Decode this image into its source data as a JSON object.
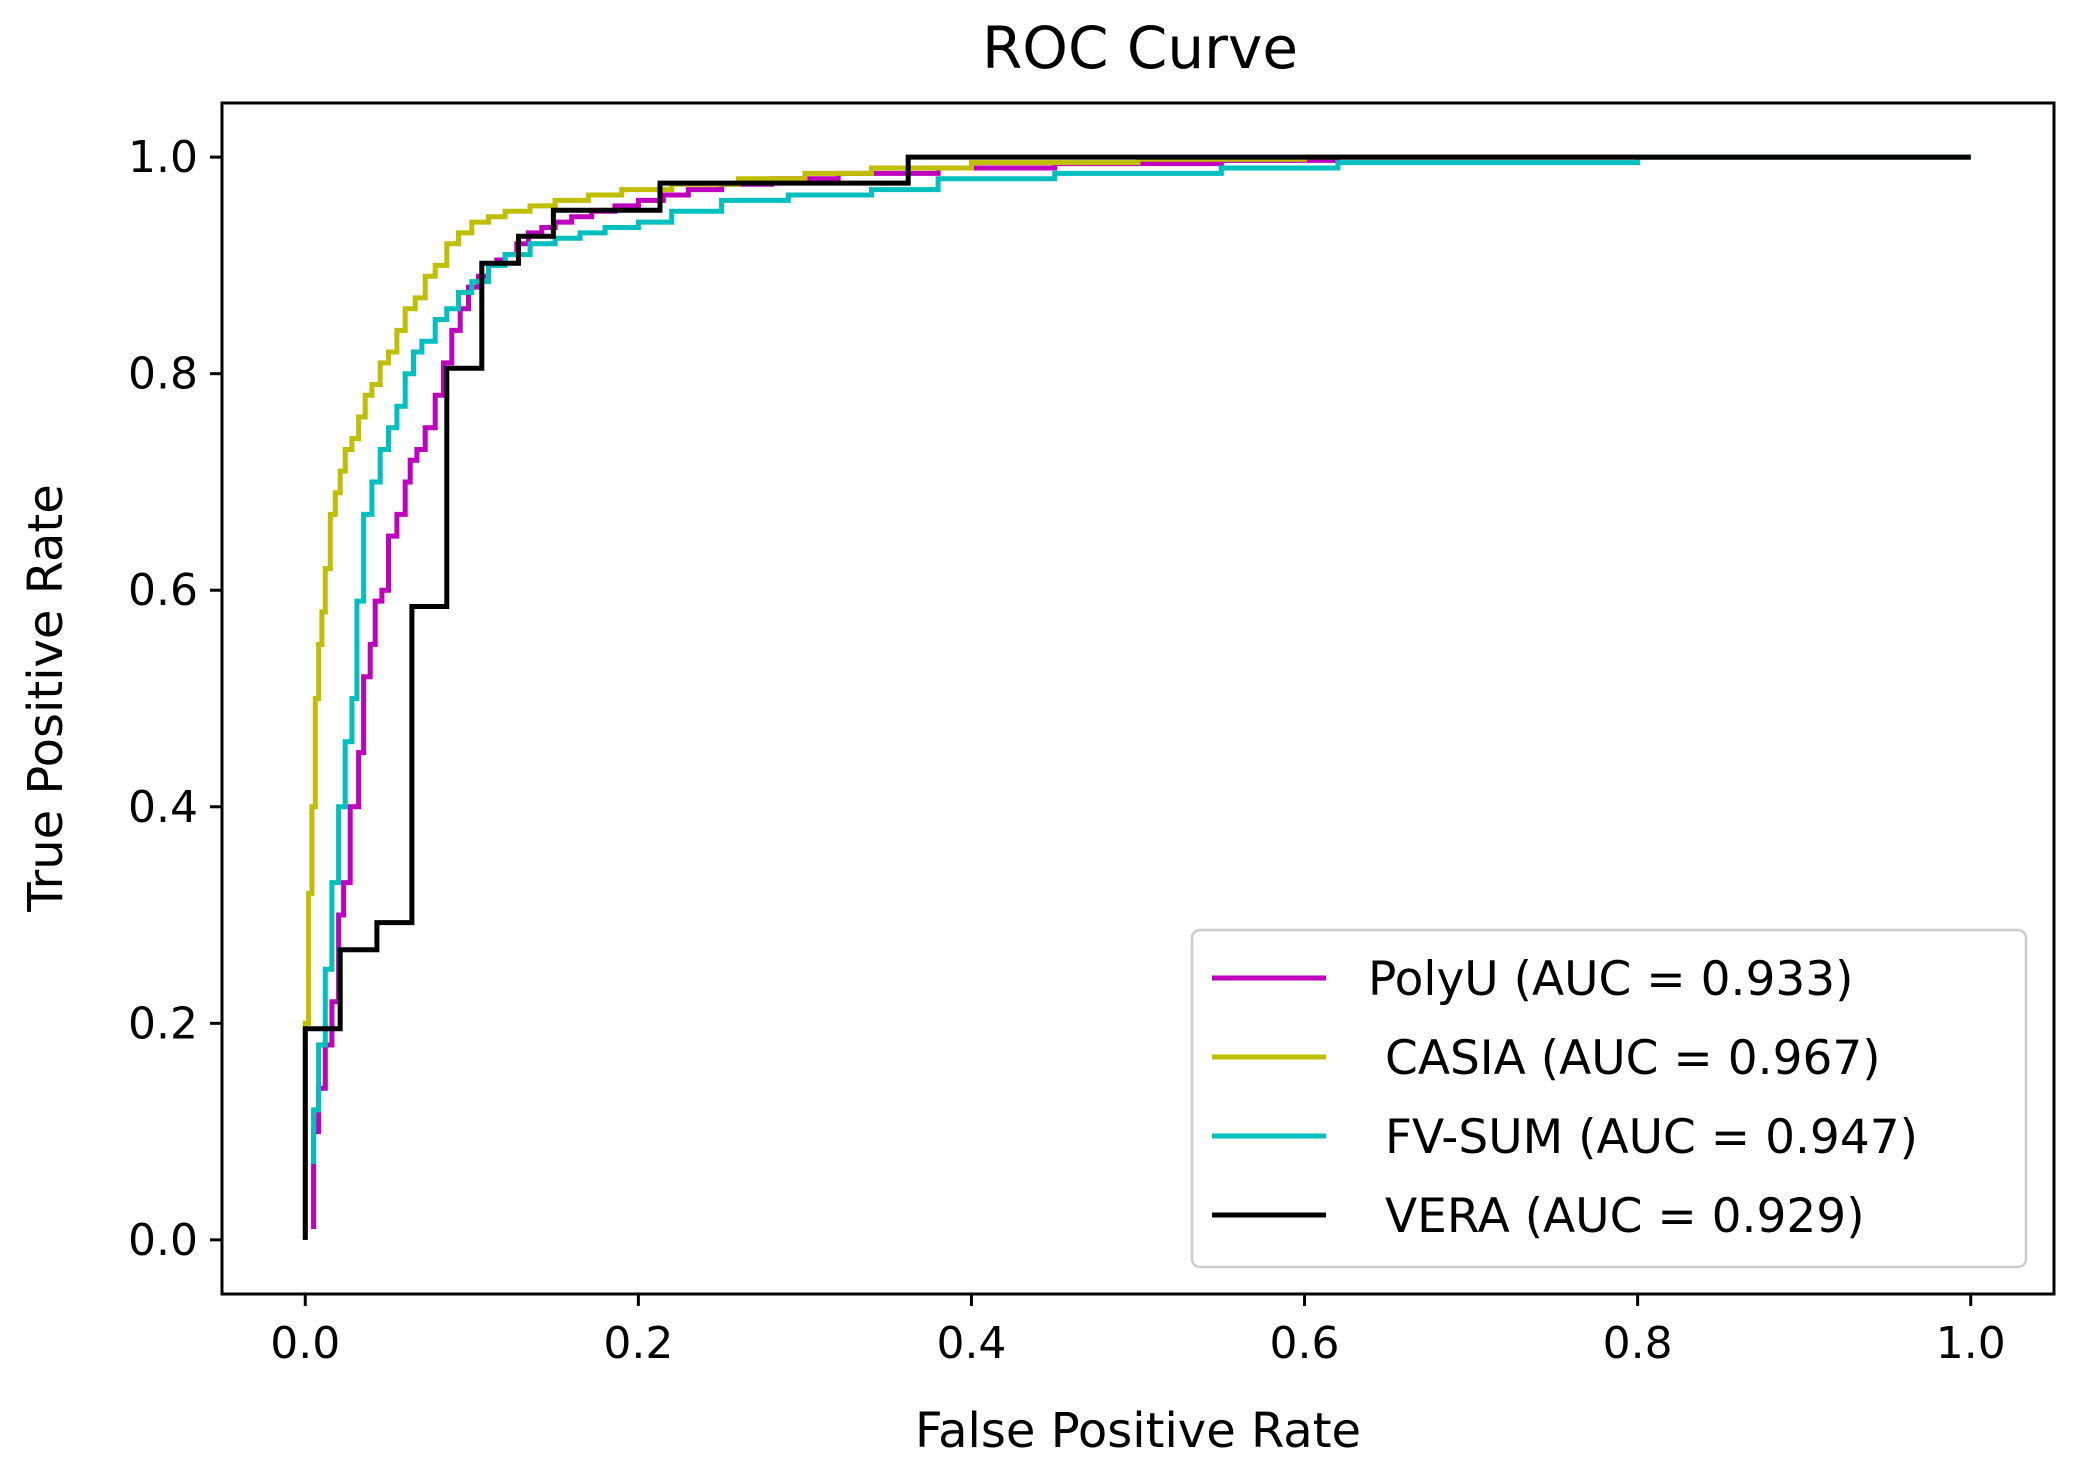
{
  "chart_data": {
    "type": "line",
    "title": "ROC Curve",
    "xlabel": "False Positive Rate",
    "ylabel": "True Positive Rate",
    "xlim": [
      -0.05,
      1.05
    ],
    "ylim": [
      -0.05,
      1.05
    ],
    "xticks": [
      0.0,
      0.2,
      0.4,
      0.6,
      0.8,
      1.0
    ],
    "yticks": [
      0.0,
      0.2,
      0.4,
      0.6,
      0.8,
      1.0
    ],
    "xtick_labels": [
      "0.0",
      "0.2",
      "0.4",
      "0.6",
      "0.8",
      "1.0"
    ],
    "ytick_labels": [
      "0.0",
      "0.2",
      "0.4",
      "0.6",
      "0.8",
      "1.0"
    ],
    "grid": false,
    "legend_position": "lower-right",
    "series": [
      {
        "name": "PolyU (AUC = 0.933)",
        "color": "#bf00bf",
        "step": true,
        "x": [
          0.005,
          0.005,
          0.008,
          0.008,
          0.012,
          0.012,
          0.016,
          0.016,
          0.02,
          0.02,
          0.023,
          0.023,
          0.027,
          0.027,
          0.032,
          0.032,
          0.035,
          0.035,
          0.039,
          0.039,
          0.042,
          0.042,
          0.046,
          0.046,
          0.05,
          0.05,
          0.055,
          0.055,
          0.06,
          0.06,
          0.063,
          0.063,
          0.067,
          0.067,
          0.072,
          0.072,
          0.078,
          0.078,
          0.083,
          0.083,
          0.088,
          0.088,
          0.093,
          0.093,
          0.098,
          0.098,
          0.104,
          0.104,
          0.11,
          0.11,
          0.115,
          0.115,
          0.12,
          0.12,
          0.127,
          0.127,
          0.134,
          0.134,
          0.142,
          0.142,
          0.15,
          0.15,
          0.16,
          0.16,
          0.172,
          0.172,
          0.186,
          0.186,
          0.2,
          0.2,
          0.215,
          0.215,
          0.23,
          0.23,
          0.25,
          0.25,
          0.28,
          0.28,
          0.32,
          0.32,
          0.38,
          0.38,
          0.45,
          0.45,
          0.55,
          0.55,
          0.62,
          0.62,
          0.8,
          0.8,
          1.0
        ],
        "y": [
          0.01,
          0.1,
          0.1,
          0.14,
          0.14,
          0.18,
          0.18,
          0.22,
          0.22,
          0.3,
          0.3,
          0.33,
          0.33,
          0.4,
          0.4,
          0.45,
          0.45,
          0.52,
          0.52,
          0.55,
          0.55,
          0.59,
          0.59,
          0.6,
          0.6,
          0.65,
          0.65,
          0.67,
          0.67,
          0.7,
          0.7,
          0.72,
          0.72,
          0.73,
          0.73,
          0.75,
          0.75,
          0.78,
          0.78,
          0.81,
          0.81,
          0.84,
          0.84,
          0.86,
          0.86,
          0.88,
          0.88,
          0.89,
          0.89,
          0.9,
          0.9,
          0.905,
          0.905,
          0.91,
          0.91,
          0.92,
          0.92,
          0.93,
          0.93,
          0.935,
          0.935,
          0.94,
          0.94,
          0.945,
          0.945,
          0.95,
          0.95,
          0.955,
          0.955,
          0.96,
          0.96,
          0.965,
          0.965,
          0.97,
          0.97,
          0.975,
          0.975,
          0.98,
          0.98,
          0.985,
          0.985,
          0.99,
          0.99,
          0.994,
          0.994,
          0.997,
          0.997,
          1.0,
          1.0,
          1.0,
          1.0
        ]
      },
      {
        "name": "CASIA (AUC = 0.967)",
        "color": "#bfbf00",
        "step": true,
        "x": [
          0.0,
          0.0,
          0.002,
          0.002,
          0.004,
          0.004,
          0.006,
          0.006,
          0.008,
          0.008,
          0.01,
          0.01,
          0.012,
          0.012,
          0.015,
          0.015,
          0.018,
          0.018,
          0.021,
          0.021,
          0.024,
          0.024,
          0.028,
          0.028,
          0.032,
          0.032,
          0.036,
          0.036,
          0.04,
          0.04,
          0.045,
          0.045,
          0.05,
          0.05,
          0.055,
          0.055,
          0.06,
          0.06,
          0.066,
          0.066,
          0.072,
          0.072,
          0.078,
          0.078,
          0.085,
          0.085,
          0.092,
          0.092,
          0.1,
          0.1,
          0.11,
          0.11,
          0.12,
          0.12,
          0.135,
          0.135,
          0.15,
          0.15,
          0.17,
          0.17,
          0.19,
          0.19,
          0.22,
          0.22,
          0.26,
          0.26,
          0.3,
          0.3,
          0.34,
          0.34,
          0.4,
          0.4,
          0.5,
          0.5,
          0.6,
          0.6,
          1.0
        ],
        "y": [
          0.0,
          0.2,
          0.2,
          0.32,
          0.32,
          0.4,
          0.4,
          0.5,
          0.5,
          0.55,
          0.55,
          0.58,
          0.58,
          0.62,
          0.62,
          0.67,
          0.67,
          0.69,
          0.69,
          0.71,
          0.71,
          0.73,
          0.73,
          0.74,
          0.74,
          0.76,
          0.76,
          0.78,
          0.78,
          0.79,
          0.79,
          0.81,
          0.81,
          0.82,
          0.82,
          0.84,
          0.84,
          0.86,
          0.86,
          0.87,
          0.87,
          0.89,
          0.89,
          0.9,
          0.9,
          0.92,
          0.92,
          0.93,
          0.93,
          0.94,
          0.94,
          0.945,
          0.945,
          0.95,
          0.95,
          0.955,
          0.955,
          0.96,
          0.96,
          0.965,
          0.965,
          0.97,
          0.97,
          0.975,
          0.975,
          0.98,
          0.98,
          0.985,
          0.985,
          0.99,
          0.99,
          0.995,
          0.995,
          0.998,
          0.998,
          1.0,
          1.0
        ]
      },
      {
        "name": "FV-SUM (AUC = 0.947)",
        "color": "#00bfbf",
        "step": true,
        "x": [
          0.005,
          0.005,
          0.008,
          0.008,
          0.012,
          0.012,
          0.016,
          0.016,
          0.02,
          0.02,
          0.024,
          0.024,
          0.028,
          0.028,
          0.031,
          0.031,
          0.035,
          0.035,
          0.04,
          0.04,
          0.045,
          0.045,
          0.05,
          0.05,
          0.055,
          0.055,
          0.06,
          0.06,
          0.065,
          0.065,
          0.07,
          0.07,
          0.078,
          0.078,
          0.085,
          0.085,
          0.092,
          0.092,
          0.1,
          0.1,
          0.11,
          0.11,
          0.12,
          0.12,
          0.135,
          0.135,
          0.15,
          0.15,
          0.165,
          0.165,
          0.18,
          0.18,
          0.2,
          0.2,
          0.22,
          0.22,
          0.25,
          0.25,
          0.29,
          0.29,
          0.34,
          0.34,
          0.38,
          0.38,
          0.45,
          0.45,
          0.55,
          0.55,
          0.62,
          0.62,
          0.8,
          0.8,
          1.0
        ],
        "y": [
          0.07,
          0.12,
          0.12,
          0.18,
          0.18,
          0.25,
          0.25,
          0.33,
          0.33,
          0.4,
          0.4,
          0.46,
          0.46,
          0.5,
          0.5,
          0.59,
          0.59,
          0.67,
          0.67,
          0.7,
          0.7,
          0.73,
          0.73,
          0.75,
          0.75,
          0.77,
          0.77,
          0.8,
          0.8,
          0.82,
          0.82,
          0.83,
          0.83,
          0.85,
          0.85,
          0.86,
          0.86,
          0.875,
          0.875,
          0.885,
          0.885,
          0.9,
          0.9,
          0.91,
          0.91,
          0.92,
          0.92,
          0.925,
          0.925,
          0.93,
          0.93,
          0.935,
          0.935,
          0.94,
          0.94,
          0.95,
          0.95,
          0.96,
          0.96,
          0.965,
          0.965,
          0.97,
          0.97,
          0.98,
          0.98,
          0.985,
          0.985,
          0.99,
          0.99,
          0.995,
          0.995,
          1.0,
          1.0
        ]
      },
      {
        "name": "VERA (AUC = 0.929)",
        "color": "#000000",
        "step": true,
        "x": [
          0.0,
          0.0,
          0.021,
          0.021,
          0.043,
          0.043,
          0.064,
          0.064,
          0.085,
          0.085,
          0.106,
          0.106,
          0.128,
          0.128,
          0.149,
          0.149,
          0.213,
          0.213,
          0.362,
          0.362,
          1.0
        ],
        "y": [
          0.0,
          0.195,
          0.195,
          0.268,
          0.268,
          0.293,
          0.293,
          0.585,
          0.585,
          0.805,
          0.805,
          0.902,
          0.902,
          0.927,
          0.927,
          0.951,
          0.951,
          0.976,
          0.976,
          1.0,
          1.0
        ]
      }
    ]
  }
}
